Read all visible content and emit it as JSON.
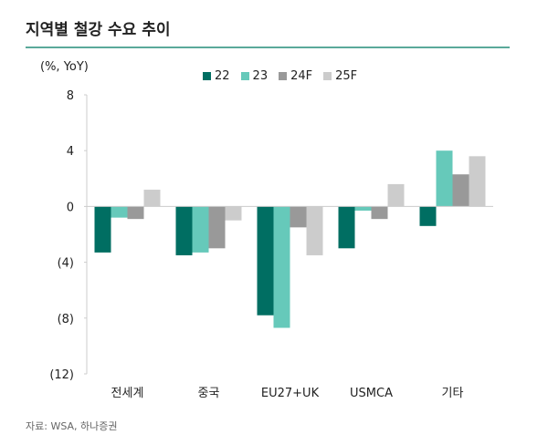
{
  "title": "지역별 철강 수요 추이",
  "source": "자료: WSA, 하나증권",
  "chart_data": {
    "type": "bar",
    "ylabel": "(%, YoY)",
    "ylim": [
      -12,
      8
    ],
    "yticks": [
      8,
      4,
      0,
      -4,
      -8,
      -12
    ],
    "ytick_labels": [
      "8",
      "4",
      "0",
      "(4)",
      "(8)",
      "(12)"
    ],
    "categories": [
      "전세계",
      "중국",
      "EU27+UK",
      "USMCA",
      "기타"
    ],
    "legend_position": "top",
    "series": [
      {
        "name": "22",
        "color": "#006e62",
        "values": [
          -3.3,
          -3.5,
          -7.8,
          -3.0,
          -1.4
        ]
      },
      {
        "name": "23",
        "color": "#66c9ba",
        "values": [
          -0.8,
          -3.3,
          -8.7,
          -0.3,
          4.0
        ]
      },
      {
        "name": "24F",
        "color": "#999999",
        "values": [
          -0.9,
          -3.0,
          -1.5,
          -0.9,
          2.3
        ]
      },
      {
        "name": "25F",
        "color": "#cccccc",
        "values": [
          1.2,
          -1.0,
          -3.5,
          1.6,
          3.6
        ]
      }
    ]
  }
}
